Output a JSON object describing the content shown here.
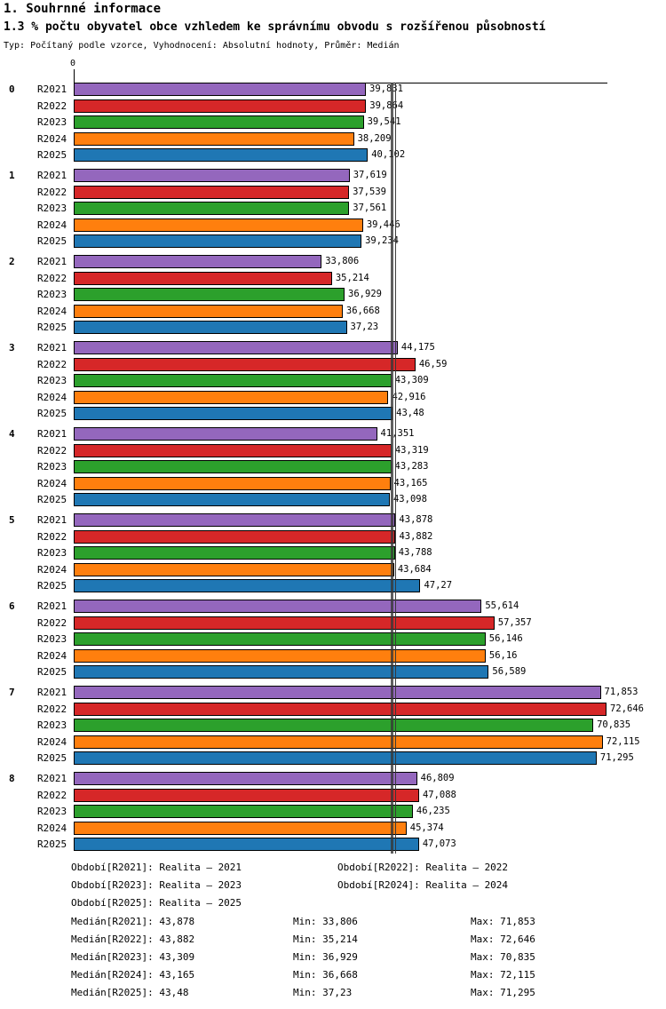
{
  "page": {
    "title": "1. Souhrnné informace",
    "subtitle": "1.3 % počtu obyvatel obce vzhledem ke správnímu obvodu s rozšířenou působností",
    "meta": "Typ: Počítaný podle vzorce, Vyhodnocení: Absolutní hodnoty, Průměr: Medián"
  },
  "chart_data": {
    "type": "bar",
    "orientation": "horizontal",
    "title": "1.3 % počtu obyvatel obce vzhledem ke správnímu obvodu s rozšířenou působností",
    "xlabel": "",
    "ylabel": "",
    "xlim": [
      0,
      72.7
    ],
    "axis_zero_label": "0",
    "grid": false,
    "legend_position": "bottom",
    "categories": [
      "0",
      "1",
      "2",
      "3",
      "4",
      "5",
      "6",
      "7",
      "8"
    ],
    "series": [
      {
        "name": "R2021",
        "color": "#9467bd",
        "values": [
          39.831,
          37.619,
          33.806,
          44.175,
          41.351,
          43.878,
          55.614,
          71.853,
          46.809
        ],
        "labels": [
          "39,831",
          "37,619",
          "33,806",
          "44,175",
          "41,351",
          "43,878",
          "55,614",
          "71,853",
          "46,809"
        ]
      },
      {
        "name": "R2022",
        "color": "#d62728",
        "values": [
          39.864,
          37.539,
          35.214,
          46.59,
          43.319,
          43.882,
          57.357,
          72.646,
          47.088
        ],
        "labels": [
          "39,864",
          "37,539",
          "35,214",
          "46,59",
          "43,319",
          "43,882",
          "57,357",
          "72,646",
          "47,088"
        ]
      },
      {
        "name": "R2023",
        "color": "#2ca02c",
        "values": [
          39.541,
          37.561,
          36.929,
          43.309,
          43.283,
          43.788,
          56.146,
          70.835,
          46.235
        ],
        "labels": [
          "39,541",
          "37,561",
          "36,929",
          "43,309",
          "43,283",
          "43,788",
          "56,146",
          "70,835",
          "46,235"
        ]
      },
      {
        "name": "R2024",
        "color": "#ff7f0e",
        "values": [
          38.209,
          39.446,
          36.668,
          42.916,
          43.165,
          43.684,
          56.16,
          72.115,
          45.374
        ],
        "labels": [
          "38,209",
          "39,446",
          "36,668",
          "42,916",
          "43,165",
          "43,684",
          "56,16",
          "72,115",
          "45,374"
        ]
      },
      {
        "name": "R2025",
        "color": "#1f77b4",
        "values": [
          40.102,
          39.234,
          37.23,
          43.48,
          43.098,
          47.27,
          56.589,
          71.295,
          47.073
        ],
        "labels": [
          "40,102",
          "39,234",
          "37,23",
          "43,48",
          "43,098",
          "47,27",
          "56,589",
          "71,295",
          "47,073"
        ]
      }
    ],
    "median_lines": [
      43.878,
      43.882,
      43.309,
      43.165,
      43.48
    ]
  },
  "legend": {
    "periods": [
      "Období[R2021]: Realita – 2021",
      "Období[R2022]: Realita – 2022",
      "Období[R2023]: Realita – 2023",
      "Období[R2024]: Realita – 2024",
      "Období[R2025]: Realita – 2025"
    ],
    "stats": [
      {
        "median": "Medián[R2021]: 43,878",
        "min": "Min: 33,806",
        "max": "Max: 71,853"
      },
      {
        "median": "Medián[R2022]: 43,882",
        "min": "Min: 35,214",
        "max": "Max: 72,646"
      },
      {
        "median": "Medián[R2023]: 43,309",
        "min": "Min: 36,929",
        "max": "Max: 70,835"
      },
      {
        "median": "Medián[R2024]: 43,165",
        "min": "Min: 36,668",
        "max": "Max: 72,115"
      },
      {
        "median": "Medián[R2025]: 43,48",
        "min": "Min: 37,23",
        "max": "Max: 71,295"
      }
    ]
  }
}
